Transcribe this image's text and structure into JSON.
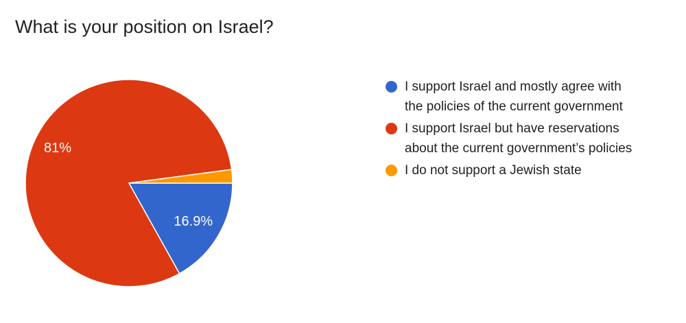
{
  "chart_data": {
    "type": "pie",
    "title": "What is your position on Israel?",
    "categories": [
      "I support Israel and mostly agree with the policies of the current government",
      "I support Israel but have reservations about the current government’s policies",
      "I do not support a Jewish state"
    ],
    "legend": [
      [
        "I support Israel and mostly agree with",
        "the policies of the current government"
      ],
      [
        "I support Israel but have reservations",
        "about the current government’s policies"
      ],
      [
        "I do not support a Jewish state"
      ]
    ],
    "values": [
      16.9,
      81,
      2.1
    ],
    "data_labels": [
      "16.9%",
      "81%",
      ""
    ],
    "colors": [
      "#3366cc",
      "#dc3912",
      "#ff9900"
    ],
    "legend_position": "right"
  }
}
